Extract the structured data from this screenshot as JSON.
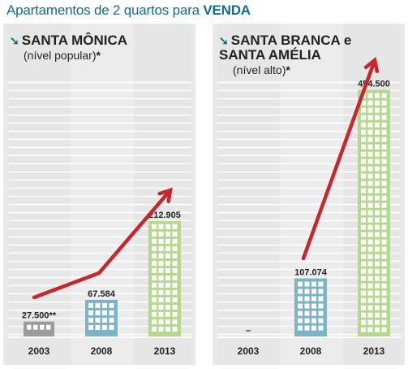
{
  "title": {
    "prefix": "Apartamentos de 2 quartos para",
    "highlight": "VENDA"
  },
  "colors": {
    "title": "#0f6f8a",
    "gray_building": "#9a9a9a",
    "blue_building": "#7cb3c6",
    "green_building": "#b5d88f",
    "arrow": "#c8262d"
  },
  "chart_data": [
    {
      "type": "bar",
      "title": "SANTA MÔNICA",
      "subtitle": "(nível popular)",
      "subtitle_mark": "*",
      "categories": [
        "2003",
        "2008",
        "2013"
      ],
      "values": [
        27500,
        67584,
        212905
      ],
      "value_labels": [
        "27.500**",
        "67.584",
        "212.905"
      ],
      "bar_colors": [
        "#9a9a9a",
        "#7cb3c6",
        "#b5d88f"
      ],
      "ylim": [
        0,
        460000
      ],
      "trend_arrow": true
    },
    {
      "type": "bar",
      "title": "SANTA BRANCA e\nSANTA AMÉLIA",
      "subtitle": "(nível alto)",
      "subtitle_mark": "*",
      "categories": [
        "2003",
        "2008",
        "2013"
      ],
      "values": [
        null,
        107074,
        454500
      ],
      "value_labels": [
        "–",
        "107.074",
        "454.500"
      ],
      "bar_colors": [
        "#9a9a9a",
        "#7cb3c6",
        "#b5d88f"
      ],
      "ylim": [
        0,
        460000
      ],
      "trend_arrow": true
    }
  ]
}
